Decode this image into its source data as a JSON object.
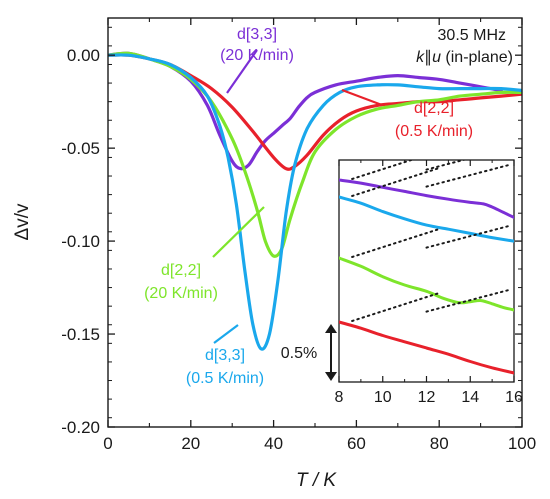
{
  "chart_data": {
    "type": "line",
    "xlabel": "T / K",
    "ylabel": "Δv/v",
    "xlim": [
      0,
      100
    ],
    "ylim": [
      -0.2,
      0.02
    ],
    "xticks": [
      "0",
      "20",
      "40",
      "60",
      "80",
      "100"
    ],
    "yticks": [
      "0.00",
      "-0.05",
      "-0.10",
      "-0.15",
      "-0.20"
    ],
    "grid": false,
    "info": {
      "line1": "30.5 MHz",
      "line2_italic": "k",
      "line2_par": "∥",
      "line2_italic2": "u",
      "line2_rest": " (in-plane)"
    },
    "series": [
      {
        "id": "d33_20",
        "color": "#7b2fd6",
        "label_line1": "d[3,3]",
        "label_line2": "(20 K/min)",
        "x": [
          0,
          5,
          10,
          15,
          20,
          24,
          27,
          30,
          32,
          34,
          36,
          38,
          40,
          42,
          44,
          46,
          48,
          50,
          55,
          60,
          65,
          70,
          75,
          80,
          85,
          90,
          95
        ],
        "y": [
          0,
          0.001,
          -0.002,
          -0.006,
          -0.014,
          -0.027,
          -0.043,
          -0.057,
          -0.061,
          -0.059,
          -0.052,
          -0.046,
          -0.042,
          -0.038,
          -0.034,
          -0.028,
          -0.023,
          -0.02,
          -0.016,
          -0.014,
          -0.012,
          -0.011,
          -0.012,
          -0.013,
          -0.015,
          -0.017,
          -0.019
        ]
      },
      {
        "id": "d22_05",
        "color": "#e8212b",
        "label_line1": "d[2,2]",
        "label_line2": "(0.5 K/min)",
        "x": [
          0,
          5,
          10,
          15,
          20,
          25,
          30,
          35,
          40,
          43,
          45,
          48,
          52,
          56,
          60,
          65,
          70,
          75,
          80,
          85,
          90,
          95,
          100
        ],
        "y": [
          0,
          0,
          -0.002,
          -0.005,
          -0.011,
          -0.018,
          -0.028,
          -0.041,
          -0.055,
          -0.061,
          -0.06,
          -0.054,
          -0.043,
          -0.035,
          -0.03,
          -0.027,
          -0.026,
          -0.025,
          -0.025,
          -0.024,
          -0.023,
          -0.022,
          -0.021
        ]
      },
      {
        "id": "d22_20",
        "color": "#7ee52b",
        "label_line1": "d[2,2]",
        "label_line2": "(20 K/min)",
        "x": [
          0,
          5,
          10,
          15,
          20,
          25,
          30,
          33,
          36,
          38,
          40,
          42,
          44,
          47,
          50,
          55,
          60,
          65,
          70,
          75,
          80,
          85,
          90,
          95,
          100
        ],
        "y": [
          0,
          0.001,
          -0.002,
          -0.006,
          -0.013,
          -0.025,
          -0.045,
          -0.062,
          -0.083,
          -0.1,
          -0.108,
          -0.104,
          -0.088,
          -0.068,
          -0.052,
          -0.04,
          -0.033,
          -0.029,
          -0.027,
          -0.025,
          -0.024,
          -0.022,
          -0.021,
          -0.02,
          -0.02
        ]
      },
      {
        "id": "d33_05",
        "color": "#1aa8ec",
        "label_line1": "d[3,3]",
        "label_line2": "(0.5 K/min)",
        "x": [
          0,
          5,
          10,
          15,
          20,
          24,
          27,
          29,
          31,
          33,
          35,
          37,
          39,
          41,
          43,
          45,
          48,
          52,
          56,
          60,
          65,
          70,
          75,
          80,
          85,
          90,
          95,
          100
        ],
        "y": [
          0,
          0,
          -0.002,
          -0.005,
          -0.012,
          -0.022,
          -0.038,
          -0.055,
          -0.08,
          -0.115,
          -0.145,
          -0.158,
          -0.15,
          -0.122,
          -0.085,
          -0.06,
          -0.04,
          -0.027,
          -0.02,
          -0.017,
          -0.016,
          -0.016,
          -0.017,
          -0.018,
          -0.018,
          -0.018,
          -0.018,
          -0.019
        ]
      }
    ],
    "inset": {
      "xlim": [
        8,
        16
      ],
      "xticks": [
        "8",
        "10",
        "12",
        "14",
        "16"
      ],
      "scale_bar_label": "0.5%",
      "series": [
        {
          "ref": "d33_20",
          "offset": 0.0,
          "x": [
            8,
            9,
            10,
            11,
            12,
            13,
            14,
            14.6,
            15,
            15.5,
            16
          ],
          "y": [
            0,
            -0.06,
            -0.14,
            -0.22,
            -0.3,
            -0.37,
            -0.43,
            -0.46,
            -0.52,
            -0.62,
            -0.72
          ]
        },
        {
          "ref": "d33_05",
          "offset": 0.0,
          "x": [
            8,
            9,
            10,
            11,
            12,
            13,
            14,
            15,
            16
          ],
          "y": [
            0,
            -0.12,
            -0.28,
            -0.42,
            -0.54,
            -0.62,
            -0.7,
            -0.78,
            -0.85
          ]
        },
        {
          "ref": "d22_20",
          "offset": 0.0,
          "x": [
            8,
            9,
            10,
            11,
            12,
            12.8,
            13.5,
            14,
            14.5,
            15,
            15.5,
            16
          ],
          "y": [
            0,
            -0.16,
            -0.36,
            -0.52,
            -0.64,
            -0.78,
            -0.86,
            -0.84,
            -0.82,
            -0.88,
            -0.95,
            -1.0
          ]
        },
        {
          "ref": "d22_05",
          "offset": 0.0,
          "x": [
            8,
            9,
            10,
            11,
            12,
            13,
            14,
            15,
            16
          ],
          "y": [
            0,
            -0.12,
            -0.26,
            -0.38,
            -0.5,
            -0.62,
            -0.76,
            -0.88,
            -0.98
          ]
        }
      ]
    }
  }
}
